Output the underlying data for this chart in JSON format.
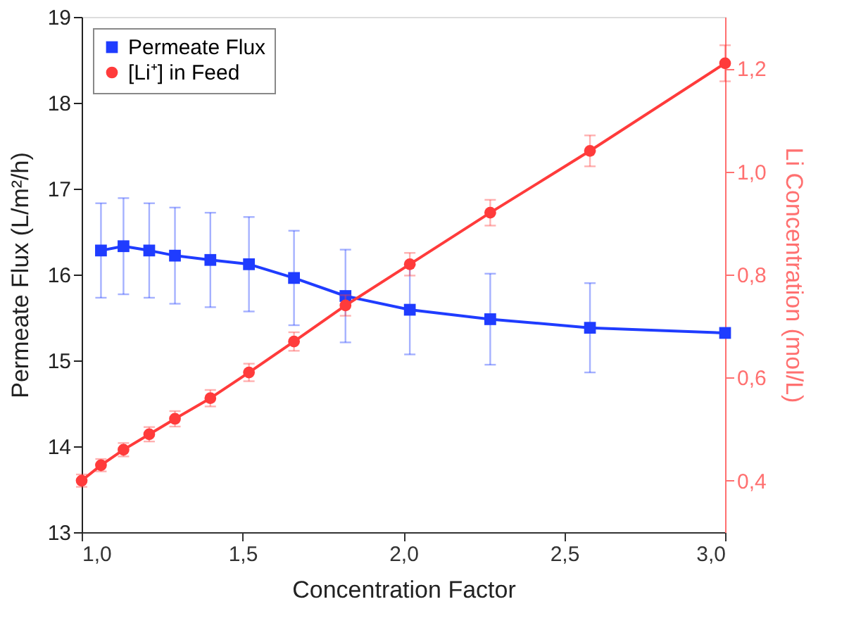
{
  "chart_data": {
    "type": "line",
    "xlabel": "Concentration Factor",
    "ylabel": "Permeate Flux (L/m²/h)",
    "y2label": "Li Concentration (mol/L)",
    "xlim": [
      1.0,
      3.0
    ],
    "xticks": [
      {
        "value": 1.0,
        "label": "1,0"
      },
      {
        "value": 1.5,
        "label": "1,5"
      },
      {
        "value": 2.0,
        "label": "2,0"
      },
      {
        "value": 2.5,
        "label": "2,5"
      },
      {
        "value": 3.0,
        "label": "3,0"
      }
    ],
    "ylim": [
      13,
      19
    ],
    "yticks": [
      13,
      14,
      15,
      16,
      17,
      18,
      19
    ],
    "y2lim": [
      0.3,
      1.3
    ],
    "y2ticks": [
      {
        "value": 0.4,
        "label": "0,4"
      },
      {
        "value": 0.6,
        "label": "0,6"
      },
      {
        "value": 0.8,
        "label": "0,8"
      },
      {
        "value": 1.0,
        "label": "1,0"
      },
      {
        "value": 1.2,
        "label": "1,2"
      }
    ],
    "grid": false,
    "legend": "top left",
    "series": [
      {
        "name": "Permeate Flux",
        "color": "#1f3cff",
        "marker": "square",
        "x": [
          1.06,
          1.13,
          1.21,
          1.29,
          1.4,
          1.52,
          1.66,
          1.82,
          2.02,
          2.27,
          2.58,
          3.0
        ],
        "values": [
          16.28,
          16.33,
          16.28,
          16.22,
          16.17,
          16.12,
          15.96,
          15.75,
          15.59,
          15.48,
          15.38,
          15.32
        ],
        "errors": [
          0.55,
          0.56,
          0.55,
          0.56,
          0.55,
          0.55,
          0.55,
          0.54,
          0.52,
          0.53,
          0.52,
          null
        ]
      },
      {
        "name": "[Li⁺] in Feed",
        "color": "#ff3b3b",
        "marker": "circle",
        "axis": "y2",
        "x": [
          1.0,
          1.06,
          1.13,
          1.21,
          1.29,
          1.4,
          1.52,
          1.66,
          1.82,
          2.02,
          2.27,
          2.58,
          3.0
        ],
        "values": [
          0.4,
          0.43,
          0.46,
          0.49,
          0.52,
          0.56,
          0.61,
          0.67,
          0.74,
          0.82,
          0.92,
          1.04,
          1.21
        ],
        "errors": [
          0.012,
          0.012,
          0.013,
          0.014,
          0.015,
          0.016,
          0.017,
          0.018,
          0.02,
          0.022,
          0.025,
          0.03,
          0.035
        ]
      }
    ]
  }
}
